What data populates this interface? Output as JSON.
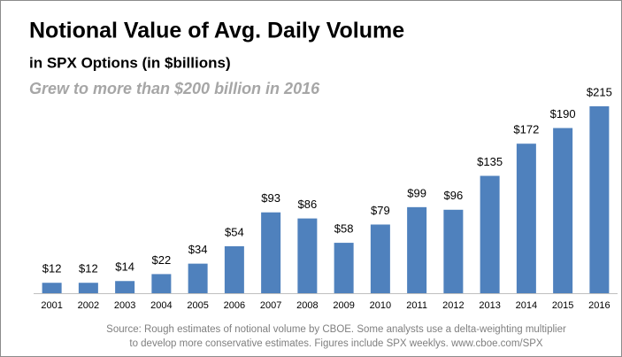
{
  "chart_data": {
    "type": "bar",
    "title": "Notional Value of Avg. Daily Volume",
    "subtitle": "in SPX Options (in $billions)",
    "annotation": "Grew to more than $200 billion in 2016",
    "categories": [
      "2001",
      "2002",
      "2003",
      "2004",
      "2005",
      "2006",
      "2007",
      "2008",
      "2009",
      "2010",
      "2011",
      "2012",
      "2013",
      "2014",
      "2015",
      "2016"
    ],
    "values": [
      12,
      12,
      14,
      22,
      34,
      54,
      93,
      86,
      58,
      79,
      99,
      96,
      135,
      172,
      190,
      215
    ],
    "value_labels": [
      "$12",
      "$12",
      "$14",
      "$22",
      "$34",
      "$54",
      "$93",
      "$86",
      "$58",
      "$79",
      "$99",
      "$96",
      "$135",
      "$172",
      "$190",
      "$215"
    ],
    "color": "#4f81bd",
    "source": [
      "Source: Rough estimates of notional volume by CBOE. Some analysts use a delta-weighting multiplier",
      "to develop more conservative estimates. Figures include SPX weeklys. www.cboe.com/SPX"
    ]
  }
}
